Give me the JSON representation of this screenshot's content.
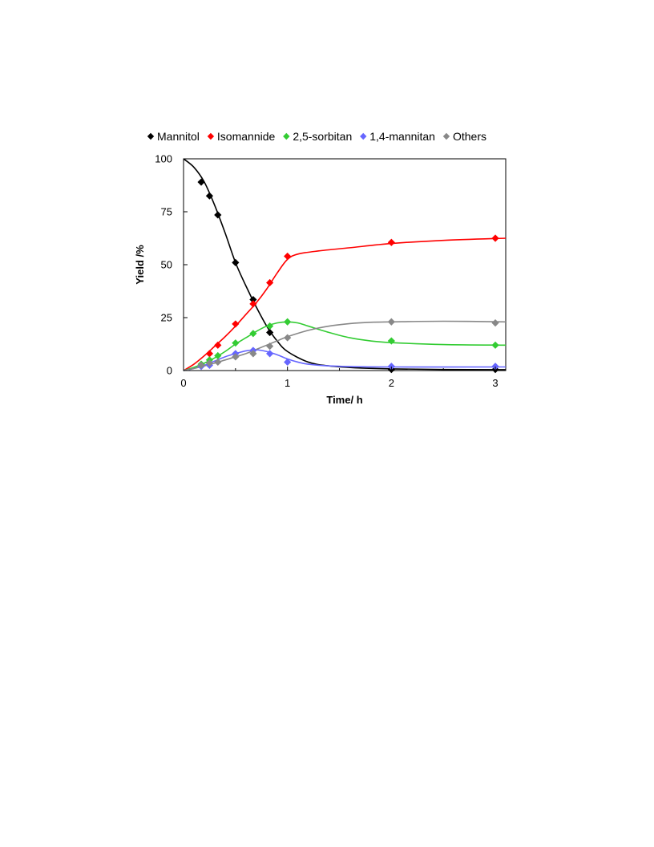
{
  "chart_data": {
    "type": "scatter",
    "title": "",
    "xlabel": "Time/ h",
    "ylabel": "Yield /%",
    "xlim": [
      0,
      3.1
    ],
    "ylim": [
      0,
      100
    ],
    "xticks": [
      "0",
      "1",
      "2",
      "3"
    ],
    "xtick_values": [
      0,
      1,
      2,
      3
    ],
    "yticks": [
      "0",
      "25",
      "50",
      "75",
      "100"
    ],
    "ytick_values": [
      0,
      25,
      50,
      75,
      100
    ],
    "grid": false,
    "legend_position": "top",
    "series": [
      {
        "name": "Mannitol",
        "color": "#000000",
        "marker": "diamond",
        "points": [
          [
            0.17,
            89
          ],
          [
            0.25,
            82.5
          ],
          [
            0.33,
            73.5
          ],
          [
            0.5,
            51
          ],
          [
            0.67,
            33.5
          ],
          [
            0.83,
            18
          ],
          [
            2,
            0.5
          ],
          [
            3,
            0.5
          ]
        ],
        "fit_curve": [
          [
            0,
            100
          ],
          [
            0.1,
            96
          ],
          [
            0.2,
            89
          ],
          [
            0.3,
            78
          ],
          [
            0.4,
            65
          ],
          [
            0.5,
            51
          ],
          [
            0.6,
            40
          ],
          [
            0.7,
            30
          ],
          [
            0.8,
            21
          ],
          [
            0.9,
            14
          ],
          [
            1.0,
            9
          ],
          [
            1.2,
            4
          ],
          [
            1.4,
            2.2
          ],
          [
            1.7,
            1.2
          ],
          [
            2.0,
            0.8
          ],
          [
            2.5,
            0.5
          ],
          [
            3.1,
            0.4
          ]
        ]
      },
      {
        "name": "Isomannide",
        "color": "#ff0000",
        "marker": "diamond",
        "points": [
          [
            0.25,
            8
          ],
          [
            0.33,
            12
          ],
          [
            0.5,
            22
          ],
          [
            0.67,
            31.5
          ],
          [
            0.83,
            41.5
          ],
          [
            1,
            54
          ],
          [
            2,
            60.5
          ],
          [
            3,
            62.5
          ]
        ],
        "fit_curve": [
          [
            0,
            0
          ],
          [
            0.1,
            3
          ],
          [
            0.2,
            7
          ],
          [
            0.3,
            11.5
          ],
          [
            0.4,
            16
          ],
          [
            0.5,
            21
          ],
          [
            0.6,
            26.5
          ],
          [
            0.7,
            32
          ],
          [
            0.8,
            38.5
          ],
          [
            0.9,
            46
          ],
          [
            1.0,
            52.5
          ],
          [
            1.1,
            55
          ],
          [
            1.3,
            56.5
          ],
          [
            1.6,
            58
          ],
          [
            2.0,
            60
          ],
          [
            2.5,
            61.5
          ],
          [
            3.1,
            62.5
          ]
        ]
      },
      {
        "name": "2,5-sorbitan",
        "color": "#33cc33",
        "marker": "diamond",
        "points": [
          [
            0.17,
            3
          ],
          [
            0.25,
            5
          ],
          [
            0.33,
            7
          ],
          [
            0.5,
            13
          ],
          [
            0.67,
            17.5
          ],
          [
            0.83,
            21
          ],
          [
            1,
            23
          ],
          [
            2,
            14
          ],
          [
            3,
            12
          ]
        ],
        "fit_curve": [
          [
            0,
            0
          ],
          [
            0.1,
            1.5
          ],
          [
            0.2,
            3.5
          ],
          [
            0.3,
            6
          ],
          [
            0.4,
            9
          ],
          [
            0.5,
            12.5
          ],
          [
            0.6,
            15.5
          ],
          [
            0.7,
            18.5
          ],
          [
            0.8,
            21
          ],
          [
            0.9,
            22.5
          ],
          [
            1.0,
            23
          ],
          [
            1.1,
            22.5
          ],
          [
            1.2,
            21
          ],
          [
            1.4,
            18
          ],
          [
            1.6,
            15.5
          ],
          [
            1.8,
            14
          ],
          [
            2.0,
            13.2
          ],
          [
            2.5,
            12.3
          ],
          [
            3.1,
            12
          ]
        ]
      },
      {
        "name": "1,4-mannitan",
        "color": "#6666ff",
        "marker": "diamond",
        "points": [
          [
            0.17,
            2
          ],
          [
            0.25,
            2.5
          ],
          [
            0.5,
            8
          ],
          [
            0.67,
            9.5
          ],
          [
            0.83,
            8
          ],
          [
            1,
            4
          ],
          [
            2,
            2
          ],
          [
            3,
            2
          ]
        ],
        "fit_curve": [
          [
            0,
            0
          ],
          [
            0.1,
            1
          ],
          [
            0.2,
            2.5
          ],
          [
            0.3,
            4.5
          ],
          [
            0.4,
            6.5
          ],
          [
            0.5,
            8
          ],
          [
            0.6,
            9.3
          ],
          [
            0.7,
            9.8
          ],
          [
            0.8,
            9
          ],
          [
            0.9,
            7.5
          ],
          [
            1.0,
            5.5
          ],
          [
            1.1,
            4
          ],
          [
            1.2,
            3
          ],
          [
            1.4,
            2.2
          ],
          [
            1.7,
            1.8
          ],
          [
            2.0,
            1.7
          ],
          [
            3.1,
            1.7
          ]
        ]
      },
      {
        "name": "Others",
        "color": "#888888",
        "marker": "diamond",
        "points": [
          [
            0.17,
            2.5
          ],
          [
            0.25,
            3.5
          ],
          [
            0.33,
            4
          ],
          [
            0.5,
            6.5
          ],
          [
            0.67,
            8
          ],
          [
            0.83,
            11.5
          ],
          [
            1,
            15.5
          ],
          [
            2,
            23
          ],
          [
            3,
            22.5
          ]
        ],
        "fit_curve": [
          [
            0,
            0
          ],
          [
            0.1,
            1
          ],
          [
            0.2,
            2.2
          ],
          [
            0.3,
            3.5
          ],
          [
            0.4,
            5
          ],
          [
            0.5,
            6.5
          ],
          [
            0.6,
            8
          ],
          [
            0.7,
            10
          ],
          [
            0.8,
            12
          ],
          [
            0.9,
            14
          ],
          [
            1.0,
            16
          ],
          [
            1.2,
            19
          ],
          [
            1.4,
            21
          ],
          [
            1.6,
            22.2
          ],
          [
            1.8,
            22.8
          ],
          [
            2.0,
            23
          ],
          [
            2.5,
            23.3
          ],
          [
            3.1,
            23
          ]
        ]
      }
    ]
  }
}
